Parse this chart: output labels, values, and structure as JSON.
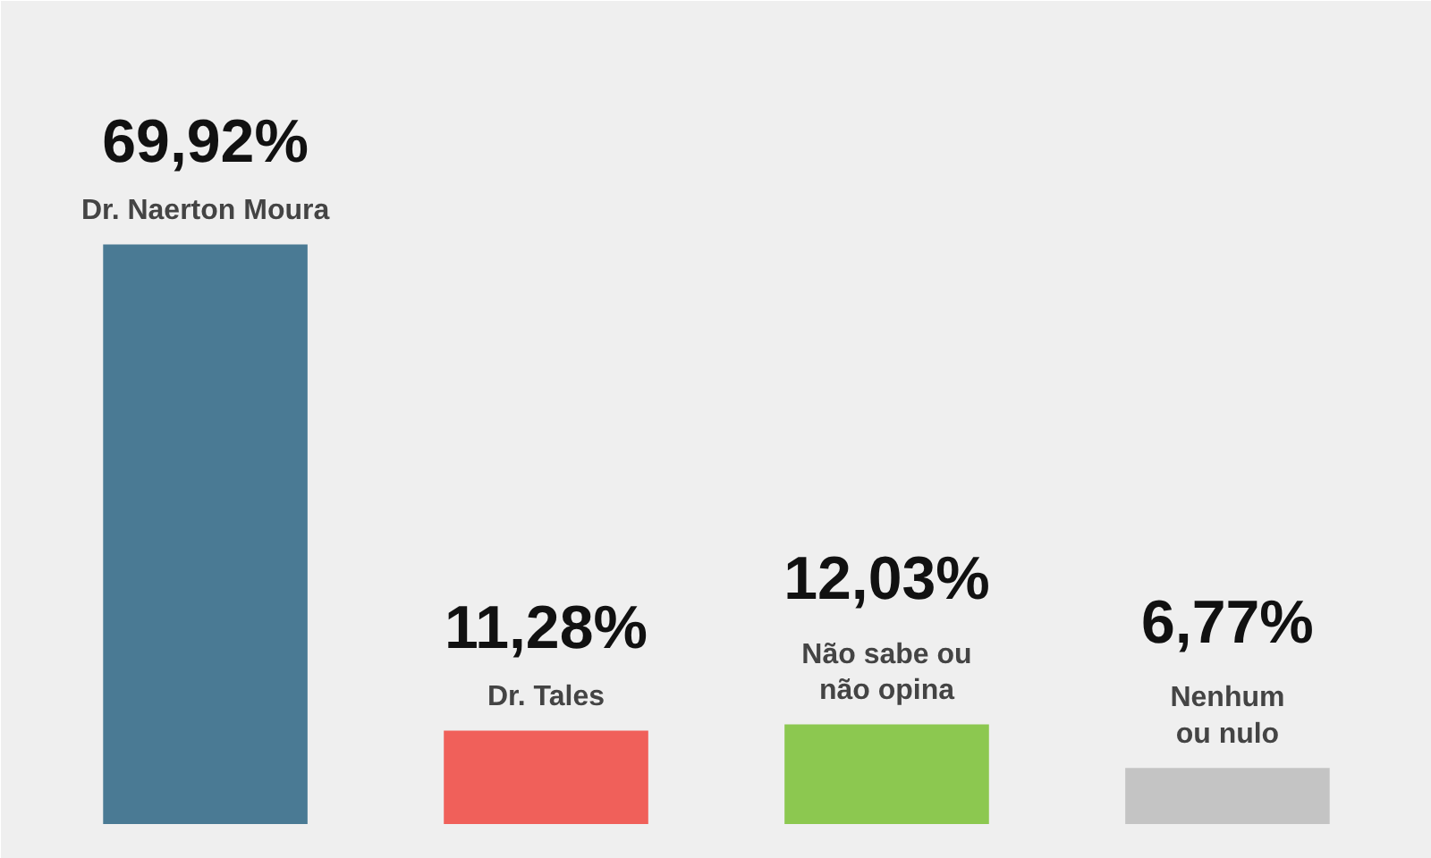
{
  "chart_data": {
    "type": "bar",
    "categories": [
      "Dr. Naerton Moura",
      "Dr. Tales",
      "Não sabe ou\nnão opina",
      "Nenhum\nou nulo"
    ],
    "values": [
      69.92,
      11.28,
      12.03,
      6.77
    ],
    "colors": [
      "#4a7a94",
      "#f0605a",
      "#8cc850",
      "#c4c4c4"
    ],
    "value_labels": [
      "69,92%",
      "11,28%",
      "12,03%",
      "6,77%"
    ]
  }
}
